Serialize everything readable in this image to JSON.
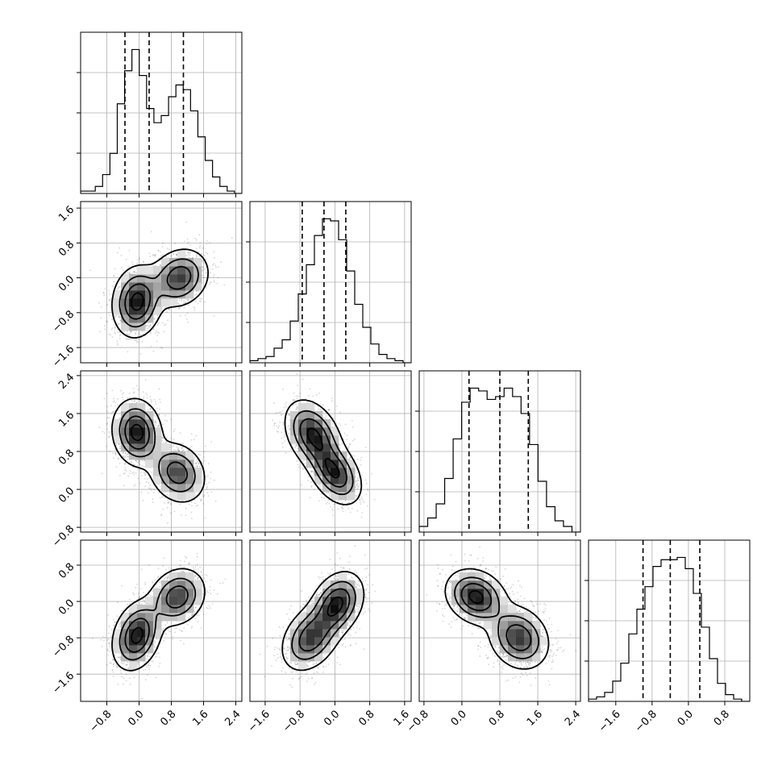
{
  "chart_data": {
    "type": "corner",
    "title": "",
    "parameters": [
      "",
      "",
      "",
      ""
    ],
    "grid": true,
    "ranges": [
      [
        -1.45,
        2.55
      ],
      [
        -1.95,
        1.75
      ],
      [
        -0.9,
        2.5
      ],
      [
        -2.2,
        1.35
      ]
    ],
    "ticks": [
      [
        -0.8,
        0.0,
        0.8,
        1.6,
        2.4
      ],
      [
        -1.6,
        -0.8,
        0.0,
        0.8,
        1.6
      ],
      [
        -0.8,
        0.0,
        0.8,
        1.6,
        2.4
      ],
      [
        -1.6,
        -0.8,
        0.0,
        0.8
      ]
    ],
    "tick_labels": [
      [
        "−0.8",
        "0.0",
        "0.8",
        "1.6",
        "2.4"
      ],
      [
        "−1.6",
        "−0.8",
        "0.0",
        "0.8",
        "1.6"
      ],
      [
        "−0.8",
        "0.0",
        "0.8",
        "1.6",
        "2.4"
      ],
      [
        "−1.6",
        "−0.8",
        "0.0",
        "0.8"
      ]
    ],
    "quantiles": [
      [
        -0.35,
        0.25,
        1.1
      ],
      [
        -0.75,
        -0.25,
        0.25
      ],
      [
        0.15,
        0.8,
        1.4
      ],
      [
        -1.0,
        -0.4,
        0.25
      ]
    ],
    "histograms": [
      [
        1,
        1,
        3,
        8,
        17,
        38,
        52,
        61,
        50,
        36,
        30,
        33,
        41,
        46,
        44,
        35,
        24,
        14,
        7,
        3,
        1,
        0
      ],
      [
        1,
        2,
        3,
        7,
        11,
        20,
        33,
        47,
        61,
        69,
        68,
        59,
        44,
        28,
        17,
        9,
        4,
        2,
        1,
        0
      ],
      [
        2,
        5,
        10,
        19,
        33,
        46,
        51,
        50,
        47,
        48,
        51,
        48,
        42,
        31,
        18,
        9,
        4,
        2,
        0
      ],
      [
        1,
        2,
        4,
        9,
        17,
        30,
        41,
        51,
        60,
        63,
        63,
        64,
        59,
        48,
        33,
        19,
        8,
        3,
        1,
        0
      ]
    ],
    "modes": [
      {
        "pair": [
          0,
          1
        ],
        "weight": 0.55,
        "mean": [
          -0.05,
          -0.55
        ],
        "cov": [
          [
            0.09,
            0.012
          ],
          [
            0.012,
            0.16
          ]
        ]
      },
      {
        "pair": [
          0,
          1
        ],
        "weight": 0.45,
        "mean": [
          1.0,
          0.0
        ],
        "cov": [
          [
            0.13,
            0.02
          ],
          [
            0.02,
            0.11
          ]
        ]
      },
      {
        "pair": [
          0,
          2
        ],
        "weight": 0.55,
        "mean": [
          -0.05,
          1.2
        ],
        "cov": [
          [
            0.09,
            -0.01
          ],
          [
            -0.01,
            0.12
          ]
        ]
      },
      {
        "pair": [
          0,
          2
        ],
        "weight": 0.45,
        "mean": [
          0.95,
          0.35
        ],
        "cov": [
          [
            0.12,
            -0.02
          ],
          [
            -0.02,
            0.1
          ]
        ]
      },
      {
        "pair": [
          1,
          2
        ],
        "weight": 0.55,
        "mean": [
          -0.5,
          1.15
        ],
        "cov": [
          [
            0.1,
            -0.04
          ],
          [
            -0.04,
            0.13
          ]
        ]
      },
      {
        "pair": [
          1,
          2
        ],
        "weight": 0.45,
        "mean": [
          0.0,
          0.35
        ],
        "cov": [
          [
            0.09,
            -0.04
          ],
          [
            -0.04,
            0.11
          ]
        ]
      },
      {
        "pair": [
          0,
          3
        ],
        "weight": 0.55,
        "mean": [
          -0.05,
          -0.75
        ],
        "cov": [
          [
            0.09,
            0.03
          ],
          [
            0.03,
            0.14
          ]
        ]
      },
      {
        "pair": [
          0,
          3
        ],
        "weight": 0.45,
        "mean": [
          0.95,
          0.1
        ],
        "cov": [
          [
            0.12,
            0.02
          ],
          [
            0.02,
            0.1
          ]
        ]
      },
      {
        "pair": [
          1,
          3
        ],
        "weight": 0.5,
        "mean": [
          -0.55,
          -0.8
        ],
        "cov": [
          [
            0.11,
            0.04
          ],
          [
            0.04,
            0.13
          ]
        ]
      },
      {
        "pair": [
          1,
          3
        ],
        "weight": 0.5,
        "mean": [
          0.05,
          -0.05
        ],
        "cov": [
          [
            0.09,
            0.03
          ],
          [
            0.03,
            0.12
          ]
        ]
      },
      {
        "pair": [
          2,
          3
        ],
        "weight": 0.5,
        "mean": [
          0.3,
          0.1
        ],
        "cov": [
          [
            0.1,
            -0.02
          ],
          [
            -0.02,
            0.09
          ]
        ]
      },
      {
        "pair": [
          2,
          3
        ],
        "weight": 0.5,
        "mean": [
          1.2,
          -0.8
        ],
        "cov": [
          [
            0.1,
            -0.02
          ],
          [
            -0.02,
            0.12
          ]
        ]
      }
    ]
  }
}
